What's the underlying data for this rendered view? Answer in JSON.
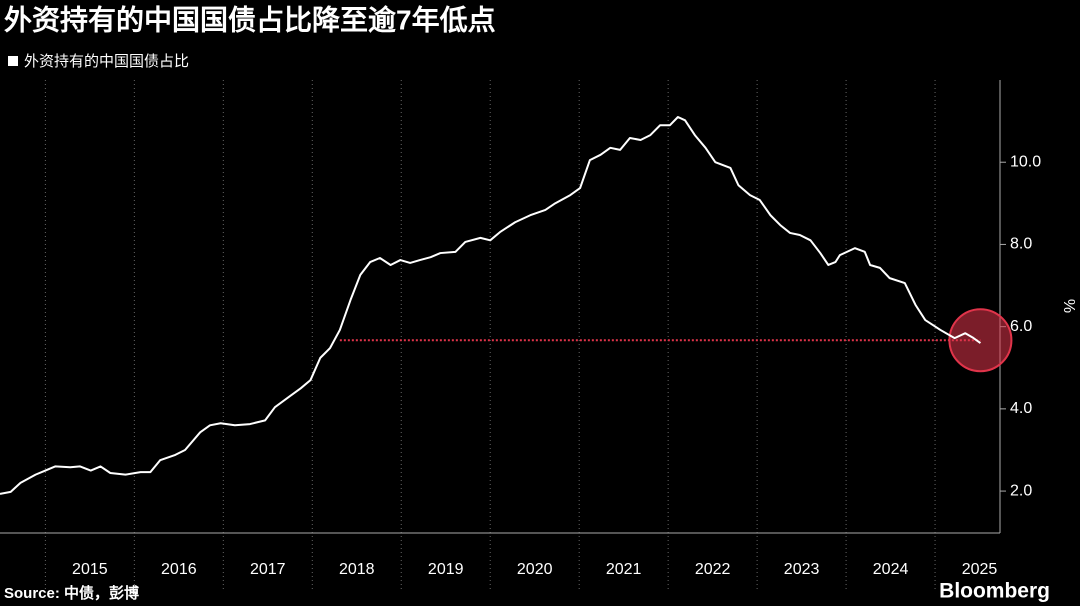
{
  "chart_data": {
    "type": "line",
    "title": "外资持有的中国国债占比降至逾7年低点",
    "y_label": "%",
    "source": "Source: 中债，彭博",
    "brand": "Bloomberg",
    "x": [
      2014.49,
      2014.61,
      2014.72,
      2014.89,
      2015.0,
      2015.11,
      2015.28,
      2015.39,
      2015.51,
      2015.62,
      2015.73,
      2015.9,
      2016.07,
      2016.18,
      2016.29,
      2016.46,
      2016.57,
      2016.74,
      2016.85,
      2016.97,
      2017.13,
      2017.3,
      2017.47,
      2017.58,
      2017.75,
      2017.87,
      2017.98,
      2018.09,
      2018.2,
      2018.31,
      2018.43,
      2018.54,
      2018.65,
      2018.76,
      2018.88,
      2018.99,
      2019.1,
      2019.21,
      2019.33,
      2019.44,
      2019.61,
      2019.72,
      2019.89,
      2020.0,
      2020.11,
      2020.28,
      2020.45,
      2020.62,
      2020.73,
      2020.9,
      2021.01,
      2021.12,
      2021.24,
      2021.35,
      2021.46,
      2021.57,
      2021.69,
      2021.8,
      2021.91,
      2022.02,
      2022.11,
      2022.19,
      2022.3,
      2022.42,
      2022.53,
      2022.7,
      2022.79,
      2022.92,
      2023.03,
      2023.15,
      2023.26,
      2023.37,
      2023.48,
      2023.6,
      2023.71,
      2023.8,
      2023.88,
      2023.93,
      2024.1,
      2024.21,
      2024.27,
      2024.38,
      2024.49,
      2024.66,
      2024.78,
      2024.89,
      2025.06,
      2025.22,
      2025.34,
      2025.42,
      2025.51
    ],
    "series": [
      {
        "name": "外资持有的中国国债占比",
        "color": "#ffffff",
        "values": [
          1.93,
          1.98,
          2.2,
          2.4,
          2.5,
          2.6,
          2.58,
          2.6,
          2.5,
          2.6,
          2.44,
          2.4,
          2.46,
          2.46,
          2.75,
          2.88,
          3.0,
          3.43,
          3.6,
          3.65,
          3.6,
          3.63,
          3.72,
          4.04,
          4.31,
          4.5,
          4.7,
          5.24,
          5.48,
          5.92,
          6.65,
          7.26,
          7.57,
          7.67,
          7.5,
          7.62,
          7.55,
          7.62,
          7.69,
          7.79,
          7.82,
          8.06,
          8.16,
          8.1,
          8.3,
          8.54,
          8.71,
          8.84,
          9.0,
          9.2,
          9.37,
          10.05,
          10.18,
          10.35,
          10.3,
          10.59,
          10.54,
          10.66,
          10.9,
          10.9,
          11.1,
          11.02,
          10.66,
          10.35,
          10.0,
          9.86,
          9.44,
          9.2,
          9.08,
          8.71,
          8.47,
          8.28,
          8.23,
          8.1,
          7.79,
          7.5,
          7.57,
          7.74,
          7.91,
          7.82,
          7.5,
          7.43,
          7.18,
          7.06,
          6.53,
          6.16,
          5.92,
          5.72,
          5.84,
          5.74,
          5.6
        ]
      }
    ],
    "xlim": [
      2014.49,
      2025.73
    ],
    "ylim": [
      0.98,
      12.0
    ],
    "xticks": [
      {
        "value": 2015,
        "label": "2015"
      },
      {
        "value": 2016,
        "label": "2016"
      },
      {
        "value": 2017,
        "label": "2017"
      },
      {
        "value": 2018,
        "label": "2018"
      },
      {
        "value": 2019,
        "label": "2019"
      },
      {
        "value": 2020,
        "label": "2020"
      },
      {
        "value": 2021,
        "label": "2021"
      },
      {
        "value": 2022,
        "label": "2022"
      },
      {
        "value": 2023,
        "label": "2023"
      },
      {
        "value": 2024,
        "label": "2024"
      },
      {
        "value": 2025,
        "label": "2025"
      }
    ],
    "yticks": [
      {
        "value": 2,
        "label": "2.0"
      },
      {
        "value": 4,
        "label": "4.0"
      },
      {
        "value": 6,
        "label": "6.0"
      },
      {
        "value": 8,
        "label": "8.0"
      },
      {
        "value": 10,
        "label": "10.0"
      }
    ],
    "reference": {
      "y": 5.67,
      "x_start": 2018.31,
      "x_end": 2025.51,
      "color": "#e0344a"
    },
    "grid": true
  }
}
